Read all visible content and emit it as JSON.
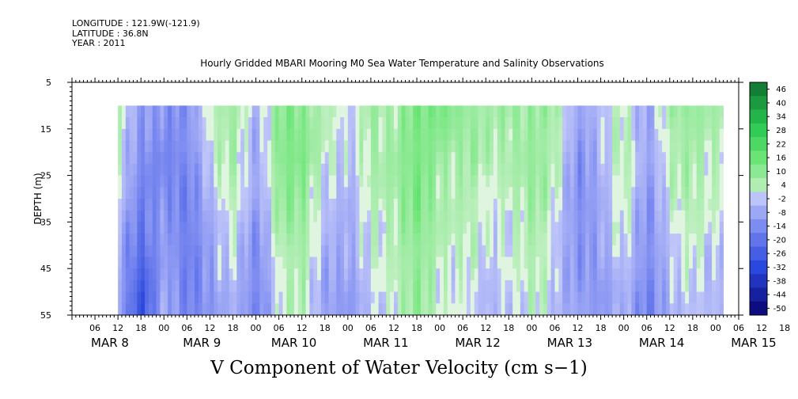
{
  "header": {
    "longitude": "LONGITUDE : 121.9W(-121.9)",
    "latitude": "LATITUDE : 36.8N",
    "year": "YEAR : 2011"
  },
  "chart_data": {
    "type": "heatmap",
    "title": "Hourly Gridded MBARI Mooring M0 Sea Water Temperature and Salinity Observations",
    "caption": "V Component of Water Velocity (cm s−1)",
    "ylabel": "DEPTH (m)",
    "y_range": [
      5,
      55
    ],
    "y_axis_inverted": true,
    "y_ticks": [
      5,
      15,
      25,
      35,
      45,
      55
    ],
    "x_range": [
      "MAR 8 00:00",
      "MAR 15 06:00"
    ],
    "x_hour_ticks": [
      "06",
      "12",
      "18",
      "00",
      "06",
      "12",
      "18",
      "00",
      "06",
      "12",
      "18",
      "00",
      "06",
      "12",
      "18",
      "00",
      "06",
      "12",
      "18",
      "00",
      "06",
      "12",
      "18",
      "00",
      "06",
      "12",
      "18",
      "00",
      "06",
      "12",
      "18",
      "00"
    ],
    "x_day_labels": [
      "MAR  8",
      "MAR  9",
      "MAR 10",
      "MAR 11",
      "MAR 12",
      "MAR 13",
      "MAR 14",
      "MAR 15"
    ],
    "data_extent": {
      "time_start": "MAR 8 ~12:00",
      "time_end": "MAR 15 ~02:00",
      "depth_top": 10,
      "depth_bottom": 55
    },
    "colorbar_levels": [
      "46",
      "40",
      "34",
      "28",
      "22",
      "16",
      "10",
      "4",
      "-2",
      "-8",
      "-14",
      "-20",
      "-26",
      "-32",
      "-38",
      "-44",
      "-50"
    ],
    "colorbar_range": [
      -50,
      50
    ],
    "colormap_negative": "#0d0d80",
    "colormap_zero": "#dff5df",
    "colormap_positive": "#0f6b2d",
    "field_samples": {
      "note_hours": [
        12,
        18,
        24,
        30,
        36,
        42,
        48,
        54,
        60,
        66,
        72,
        78,
        84,
        90,
        96,
        102,
        108,
        114,
        120,
        126,
        132,
        138,
        144,
        150,
        156,
        162,
        168
      ],
      "depths": [
        10,
        20,
        30,
        40,
        50
      ],
      "values": [
        [
          4,
          -12,
          -14,
          -10,
          2,
          6,
          -4,
          8,
          10,
          4,
          -4,
          8,
          6,
          10,
          14,
          8,
          4,
          10,
          6,
          4,
          -8,
          -4,
          2,
          -6,
          4,
          8,
          6
        ],
        [
          2,
          -14,
          -16,
          -12,
          -2,
          4,
          -6,
          10,
          12,
          2,
          -6,
          6,
          8,
          12,
          8,
          6,
          2,
          6,
          8,
          2,
          -10,
          -6,
          4,
          -8,
          2,
          6,
          4
        ],
        [
          -2,
          -18,
          -14,
          -14,
          -6,
          2,
          -8,
          6,
          8,
          -2,
          -8,
          4,
          6,
          10,
          6,
          4,
          -2,
          4,
          6,
          -2,
          -12,
          -8,
          2,
          -10,
          -2,
          4,
          2
        ],
        [
          -6,
          -22,
          -10,
          -16,
          -10,
          -2,
          -12,
          2,
          6,
          -6,
          -10,
          2,
          4,
          8,
          4,
          2,
          -4,
          2,
          4,
          -4,
          -10,
          -10,
          -2,
          -12,
          -4,
          2,
          -2
        ],
        [
          -8,
          -30,
          -8,
          -14,
          -12,
          -6,
          -14,
          -2,
          4,
          -8,
          -12,
          -2,
          2,
          6,
          2,
          0,
          -6,
          0,
          2,
          -6,
          -8,
          -12,
          -6,
          -14,
          -8,
          -2,
          -4
        ]
      ]
    }
  }
}
